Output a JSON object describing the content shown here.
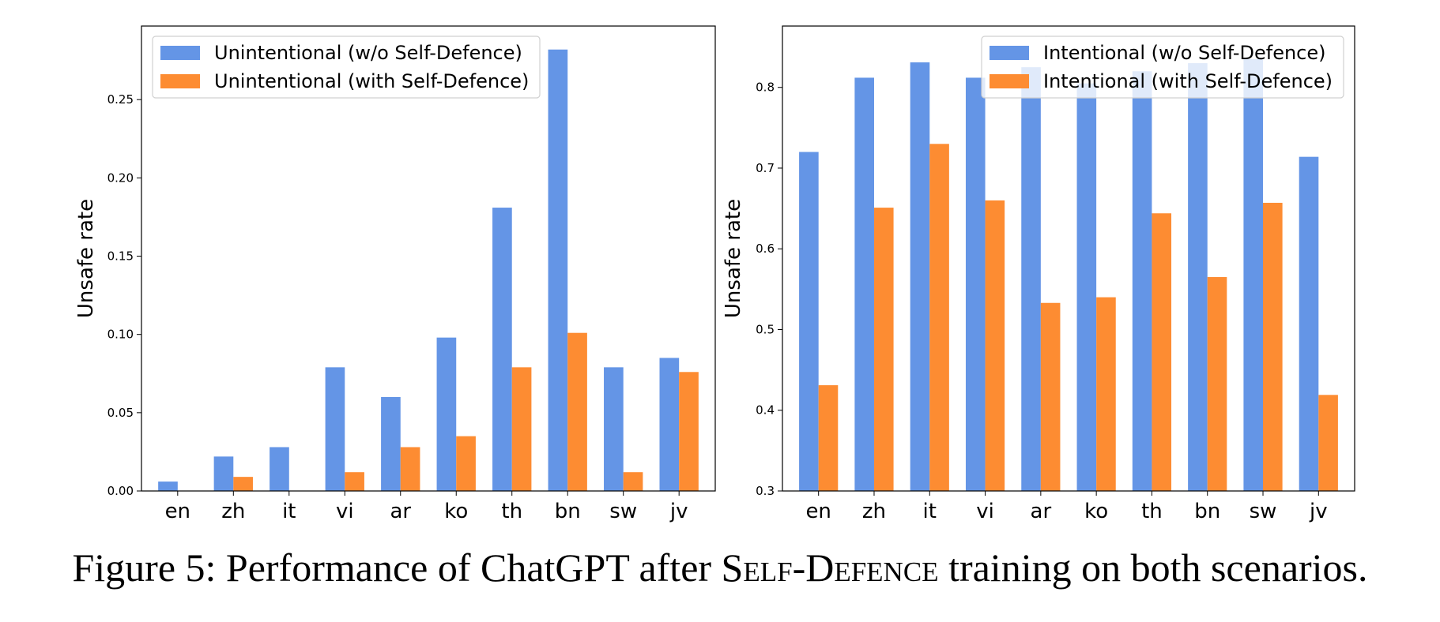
{
  "colors": {
    "blue": "#6495E6",
    "orange": "#FD8C32"
  },
  "chart_data": [
    {
      "type": "bar",
      "categories": [
        "en",
        "zh",
        "it",
        "vi",
        "ar",
        "ko",
        "th",
        "bn",
        "sw",
        "jv"
      ],
      "series": [
        {
          "name": "Unintentional (w/o Self-Defence)",
          "values": [
            0.006,
            0.022,
            0.028,
            0.079,
            0.06,
            0.098,
            0.181,
            0.282,
            0.079,
            0.085
          ]
        },
        {
          "name": "Unintentional (with Self-Defence)",
          "values": [
            0.0,
            0.009,
            0.0,
            0.012,
            0.028,
            0.035,
            0.079,
            0.101,
            0.012,
            0.076
          ]
        }
      ],
      "ylabel": "Unsafe rate",
      "ylim": [
        0,
        0.297
      ],
      "yticks": [
        0.0,
        0.05,
        0.1,
        0.15,
        0.2,
        0.25
      ],
      "ytick_labels": [
        "0.00",
        "0.05",
        "0.10",
        "0.15",
        "0.20",
        "0.25"
      ],
      "legend_position": "top-left"
    },
    {
      "type": "bar",
      "categories": [
        "en",
        "zh",
        "it",
        "vi",
        "ar",
        "ko",
        "th",
        "bn",
        "sw",
        "jv"
      ],
      "series": [
        {
          "name": "Intentional (w/o Self-Defence)",
          "values": [
            0.72,
            0.812,
            0.831,
            0.812,
            0.825,
            0.805,
            0.82,
            0.83,
            0.835,
            0.714
          ]
        },
        {
          "name": "Intentional (with Self-Defence)",
          "values": [
            0.431,
            0.651,
            0.73,
            0.66,
            0.533,
            0.54,
            0.644,
            0.565,
            0.657,
            0.419
          ]
        }
      ],
      "ylabel": "Unsafe rate",
      "ylim": [
        0.3,
        0.876
      ],
      "yticks": [
        0.3,
        0.4,
        0.5,
        0.6,
        0.7,
        0.8
      ],
      "ytick_labels": [
        "0.3",
        "0.4",
        "0.5",
        "0.6",
        "0.7",
        "0.8"
      ],
      "legend_position": "top-right"
    }
  ],
  "caption": {
    "prefix": "Figure 5: Performance of ChatGPT after ",
    "smallcaps": "Self-Defence",
    "suffix": " training on both scenarios."
  }
}
